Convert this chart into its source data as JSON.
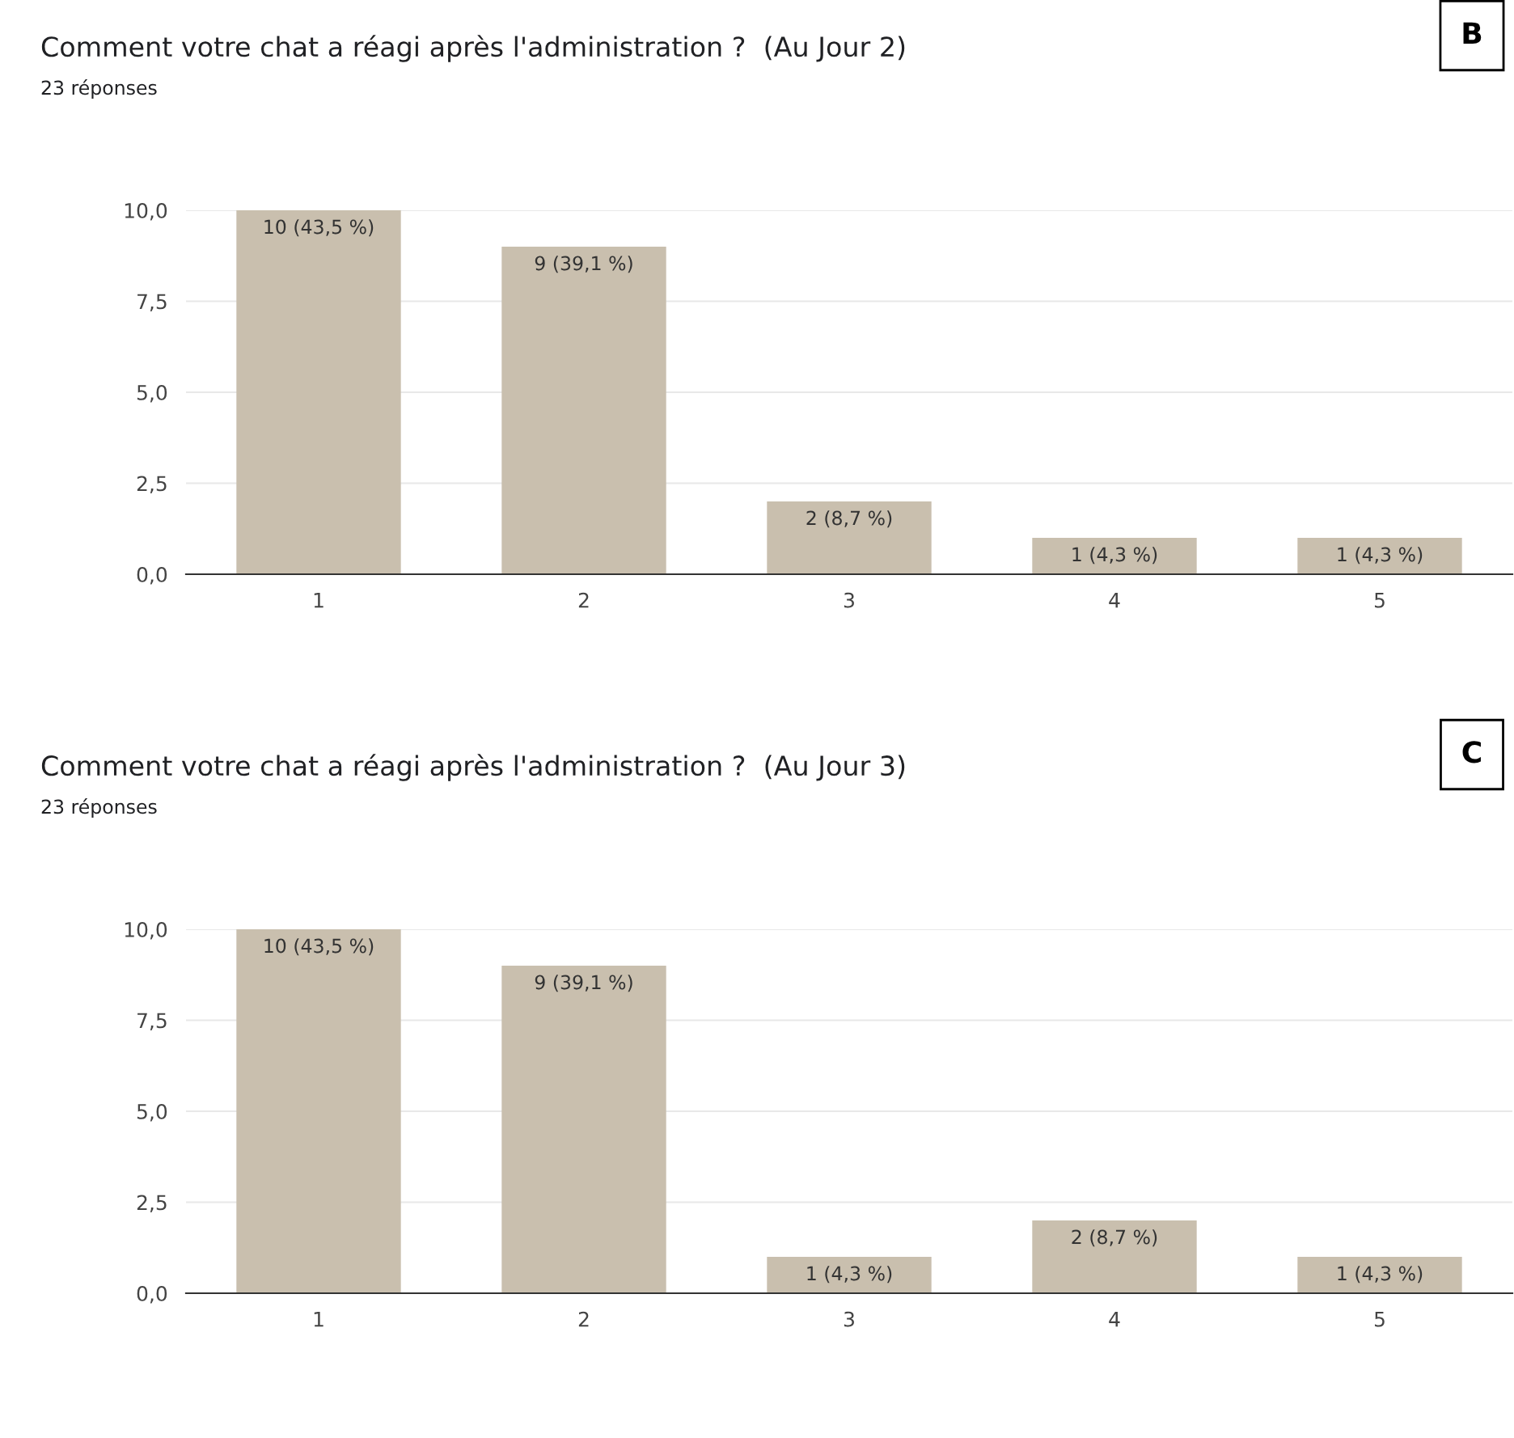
{
  "chart_data": [
    {
      "type": "bar",
      "title": "Comment votre chat a réagi après l'administration ?  (Au Jour 2)",
      "subtitle": "23 réponses",
      "annotations": [
        "B"
      ],
      "categories": [
        "1",
        "2",
        "3",
        "4",
        "5"
      ],
      "values": [
        10,
        9,
        2,
        1,
        1
      ],
      "color": "#c9bfae",
      "value_labels": [
        "10 (43,5 %)",
        "9 (39,1 %)",
        "2 (8,7 %)",
        "1 (4,3 %)",
        "1 (4,3 %)"
      ],
      "ylim": [
        0,
        10
      ],
      "yticks": [
        {
          "value": 0,
          "label": "0,0"
        },
        {
          "value": 2.5,
          "label": "2,5"
        },
        {
          "value": 5,
          "label": "5,0"
        },
        {
          "value": 7.5,
          "label": "7,5"
        },
        {
          "value": 10,
          "label": "10,0"
        }
      ],
      "grid": "y",
      "legend": false
    },
    {
      "type": "bar",
      "title": "Comment votre chat a réagi après l'administration ?  (Au Jour 3)",
      "subtitle": "23 réponses",
      "annotations": [
        "C"
      ],
      "categories": [
        "1",
        "2",
        "3",
        "4",
        "5"
      ],
      "values": [
        10,
        9,
        1,
        2,
        1
      ],
      "color": "#c9bfae",
      "value_labels": [
        "10 (43,5 %)",
        "9 (39,1 %)",
        "1 (4,3 %)",
        "2 (8,7 %)",
        "1 (4,3 %)"
      ],
      "ylim": [
        0,
        10
      ],
      "yticks": [
        {
          "value": 0,
          "label": "0,0"
        },
        {
          "value": 2.5,
          "label": "2,5"
        },
        {
          "value": 5,
          "label": "5,0"
        },
        {
          "value": 7.5,
          "label": "7,5"
        },
        {
          "value": 10,
          "label": "10,0"
        }
      ],
      "grid": "y",
      "legend": false
    }
  ]
}
